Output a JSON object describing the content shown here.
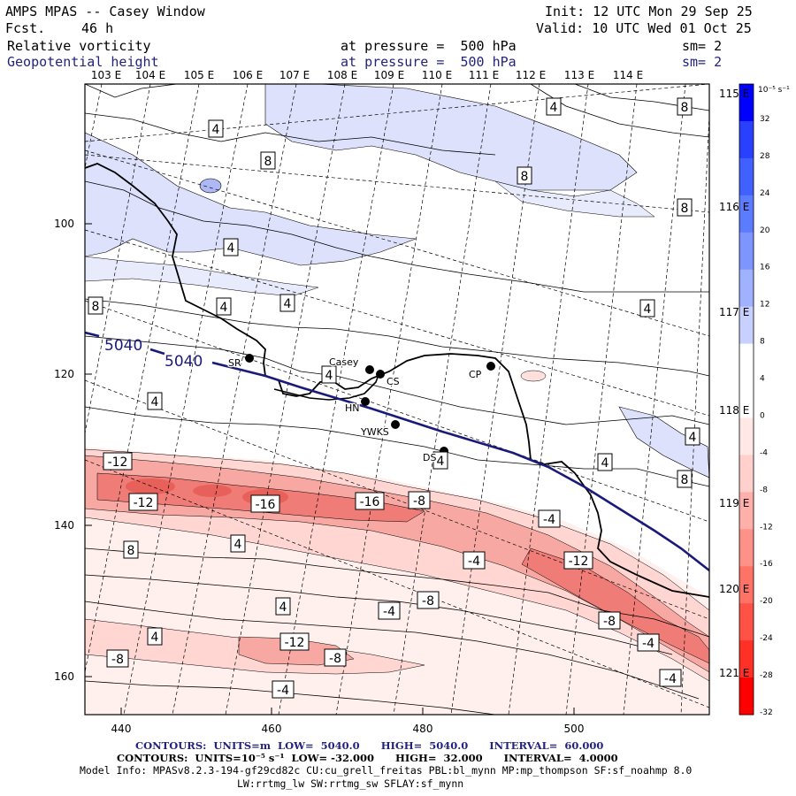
{
  "header": {
    "title": "AMPS MPAS -- Casey Window",
    "fcst_label": "Fcst.",
    "fcst_value": "46 h",
    "init": "Init: 12 UTC Mon 29 Sep 25",
    "valid": "Valid: 10 UTC Wed 01 Oct 25",
    "field1_name": "Relative vorticity",
    "field1_level": "at pressure =  500 hPa",
    "field1_sm": "sm= 2",
    "field2_name": "Geopotential height",
    "field2_level": "at pressure =  500 hPa",
    "field2_sm": "sm= 2"
  },
  "colors": {
    "blue_text": "#23237f",
    "height_line": "#1a1a7a"
  },
  "top_longitudes": [
    "103 E",
    "104 E",
    "105 E",
    "106 E",
    "107 E",
    "108 E",
    "109 E",
    "110 E",
    "111 E",
    "112 E",
    "113 E",
    "114 E"
  ],
  "right_longitudes": [
    "115 E",
    "116 E",
    "117 E",
    "118 E",
    "119 E",
    "120 E",
    "121 E"
  ],
  "x_ticks": [
    "440",
    "460",
    "480",
    "500"
  ],
  "y_ticks": [
    "100",
    "120",
    "140",
    "160"
  ],
  "stations": [
    {
      "label": "SR",
      "kind": "station"
    },
    {
      "label": "Casey",
      "kind": "station"
    },
    {
      "label": "CS",
      "kind": "station"
    },
    {
      "label": "CP",
      "kind": "station"
    },
    {
      "label": "HN",
      "kind": "station"
    },
    {
      "label": "YWKS",
      "kind": "station"
    },
    {
      "label": "DS",
      "kind": "station"
    }
  ],
  "height_labels": [
    "5040",
    "5040"
  ],
  "contour_labels": [
    "4",
    "4",
    "8",
    "8",
    "8",
    "8",
    "4",
    "4",
    "8",
    "4",
    "4",
    "4",
    "4",
    "4",
    "4",
    "4",
    "8",
    "-12",
    "-12",
    "-16",
    "-16",
    "-8",
    "-4",
    "-12",
    "-4",
    "-8",
    "-4",
    "-4",
    "8",
    "4",
    "4",
    "4",
    "-12",
    "-8",
    "-8",
    "-8",
    "-4",
    "-4"
  ],
  "colorbar": {
    "unit_label": "10⁻⁵ s⁻¹",
    "ticks": [
      "32",
      "28",
      "24",
      "20",
      "16",
      "12",
      "8",
      "4",
      "0",
      "-4",
      "-8",
      "-12",
      "-16",
      "-20",
      "-24",
      "-28",
      "-32"
    ],
    "colors": [
      "#0000ff",
      "#2a40ff",
      "#4060ff",
      "#5c7cff",
      "#7d96ff",
      "#9fb1ff",
      "#c7d0ff",
      "#ffffff",
      "#ffffff",
      "#ffe8e6",
      "#ffd0cc",
      "#ffb0aa",
      "#ff9288",
      "#ff7266",
      "#ff5246",
      "#ff3026",
      "#ff0000"
    ]
  },
  "footer": {
    "line1": "CONTOURS:  UNITS=m  LOW=  5040.0      HIGH=  5040.0      INTERVAL=  60.000",
    "line2": "CONTOURS:  UNITS=10⁻⁵ s⁻¹  LOW= -32.000      HIGH=  32.000      INTERVAL=  4.0000",
    "line3": "Model Info: MPASv8.2.3-194-gf29cd82c CU:cu_grell_freitas PBL:bl_mynn MP:mp_thompson SF:sf_noahmp 8.0",
    "line4": "LW:rrtmg_lw SW:rrtmg_sw SFLAY:sf_mynn"
  }
}
